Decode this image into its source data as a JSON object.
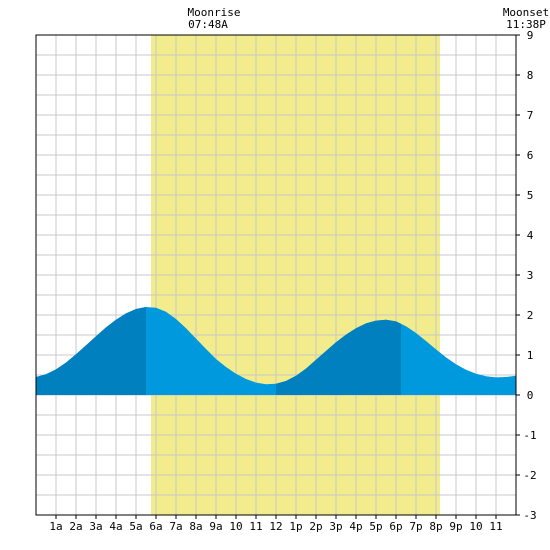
{
  "header": {
    "moonrise_label": "Moonrise",
    "moonrise_time": "07:48A",
    "moonset_label": "Moonset",
    "moonset_time": "11:38P"
  },
  "chart_data": {
    "type": "area",
    "title": "",
    "xlabel": "",
    "ylabel": "",
    "xlim": [
      0,
      24
    ],
    "ylim": [
      -3,
      9
    ],
    "grid": true,
    "x_tick_labels": [
      "1a",
      "2a",
      "3a",
      "4a",
      "5a",
      "6a",
      "7a",
      "8a",
      "9a",
      "10",
      "11",
      "12",
      "1p",
      "2p",
      "3p",
      "4p",
      "5p",
      "6p",
      "7p",
      "8p",
      "9p",
      "10",
      "11"
    ],
    "y_tick_labels": [
      "9",
      "8",
      "7",
      "6",
      "5",
      "4",
      "3",
      "2",
      "1",
      "0",
      "-1",
      "-2",
      "-3"
    ],
    "daylight": {
      "start_hour": 5.75,
      "end_hour": 20.2,
      "color": "#f2ec8c"
    },
    "dark_shading": [
      [
        0,
        5.5
      ],
      [
        12,
        18.25
      ]
    ],
    "colors": {
      "tide_light": "#0099dd",
      "tide_dark": "#0080bf",
      "grid": "#c8c8c8"
    },
    "series": [
      {
        "x": [
          0,
          0.5,
          1,
          1.5,
          2,
          2.5,
          3,
          3.5,
          4,
          4.5,
          5,
          5.5,
          6,
          6.5,
          7,
          7.5,
          8,
          8.5,
          9,
          9.5,
          10,
          10.5,
          11,
          11.5,
          12,
          12.5,
          13,
          13.5,
          14,
          14.5,
          15,
          15.5,
          16,
          16.5,
          17,
          17.5,
          18,
          18.5,
          19,
          19.5,
          20,
          20.5,
          21,
          21.5,
          22,
          22.5,
          23,
          23.5,
          24
        ],
        "values": [
          0.45,
          0.52,
          0.64,
          0.81,
          1.02,
          1.24,
          1.47,
          1.69,
          1.88,
          2.04,
          2.15,
          2.2,
          2.18,
          2.08,
          1.9,
          1.67,
          1.41,
          1.15,
          0.9,
          0.7,
          0.53,
          0.4,
          0.31,
          0.27,
          0.28,
          0.35,
          0.48,
          0.66,
          0.88,
          1.1,
          1.32,
          1.51,
          1.67,
          1.79,
          1.86,
          1.88,
          1.84,
          1.72,
          1.55,
          1.35,
          1.14,
          0.94,
          0.77,
          0.63,
          0.53,
          0.47,
          0.44,
          0.45,
          0.48
        ]
      }
    ]
  }
}
